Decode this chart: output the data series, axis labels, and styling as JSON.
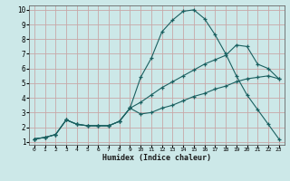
{
  "xlabel": "Humidex (Indice chaleur)",
  "bg_color": "#cce8e8",
  "grid_color": "#c8a8a8",
  "line_color": "#1a6060",
  "xlim": [
    -0.5,
    23.5
  ],
  "ylim": [
    0.8,
    10.3
  ],
  "xticks": [
    0,
    1,
    2,
    3,
    4,
    5,
    6,
    7,
    8,
    9,
    10,
    11,
    12,
    13,
    14,
    15,
    16,
    17,
    18,
    19,
    20,
    21,
    22,
    23
  ],
  "yticks": [
    1,
    2,
    3,
    4,
    5,
    6,
    7,
    8,
    9,
    10
  ],
  "line1_x": [
    0,
    1,
    2,
    3,
    4,
    5,
    6,
    7,
    8,
    9,
    10,
    11,
    12,
    13,
    14,
    15,
    16,
    17,
    18,
    19,
    20,
    21,
    22,
    23
  ],
  "line1_y": [
    1.2,
    1.3,
    1.5,
    2.5,
    2.2,
    2.1,
    2.1,
    2.1,
    2.4,
    3.3,
    5.4,
    6.7,
    8.5,
    9.3,
    9.9,
    10.0,
    9.4,
    8.3,
    7.0,
    5.5,
    4.2,
    3.2,
    2.2,
    1.2
  ],
  "line2_x": [
    0,
    1,
    2,
    3,
    4,
    5,
    6,
    7,
    8,
    9,
    10,
    11,
    12,
    13,
    14,
    15,
    16,
    17,
    18,
    19,
    20,
    21,
    22,
    23
  ],
  "line2_y": [
    1.2,
    1.3,
    1.5,
    2.5,
    2.2,
    2.1,
    2.1,
    2.1,
    2.4,
    3.3,
    3.7,
    4.2,
    4.7,
    5.1,
    5.5,
    5.9,
    6.3,
    6.6,
    6.9,
    7.6,
    7.5,
    6.3,
    6.0,
    5.3
  ],
  "line3_x": [
    0,
    1,
    2,
    3,
    4,
    5,
    6,
    7,
    8,
    9,
    10,
    11,
    12,
    13,
    14,
    15,
    16,
    17,
    18,
    19,
    20,
    21,
    22,
    23
  ],
  "line3_y": [
    1.2,
    1.3,
    1.5,
    2.5,
    2.2,
    2.1,
    2.1,
    2.1,
    2.4,
    3.3,
    2.9,
    3.0,
    3.3,
    3.5,
    3.8,
    4.1,
    4.3,
    4.6,
    4.8,
    5.1,
    5.3,
    5.4,
    5.5,
    5.3
  ]
}
